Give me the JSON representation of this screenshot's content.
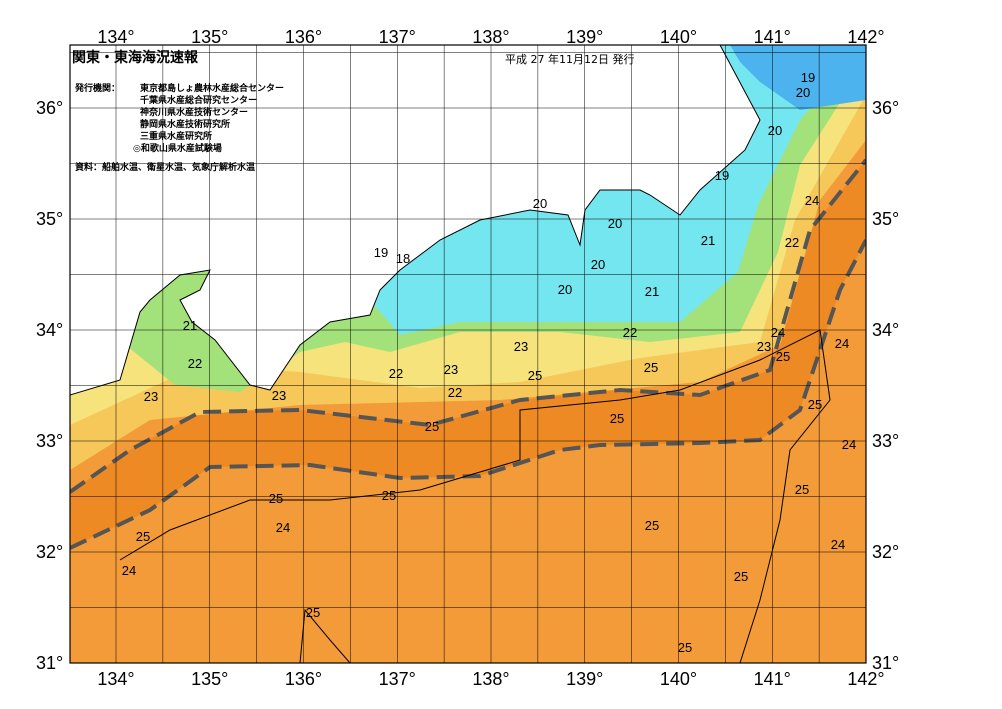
{
  "header": {
    "title": "関東・東海海況速報",
    "date": "平成 27 年11月12日 発行"
  },
  "agencies": {
    "label": "発行機関：",
    "items": [
      "東京都島しょ農林水産総合センター",
      "千葉県水産総合研究センター",
      "神奈川県水産技術センター",
      "静岡県水産技術研究所",
      "三重県水産研究所",
      "◎和歌山県水産試験場"
    ]
  },
  "source": "資料：船舶水温、衛星水温、気象庁解析水温",
  "map": {
    "lon_labels": [
      "134°",
      "135°",
      "136°",
      "137°",
      "138°",
      "139°",
      "140°",
      "141°",
      "142°"
    ],
    "lat_labels": [
      "31°",
      "32°",
      "33°",
      "34°",
      "35°",
      "36°"
    ],
    "contour_labels": [
      "19",
      "20",
      "20",
      "19",
      "20",
      "20",
      "19",
      "18",
      "20",
      "20",
      "21",
      "21",
      "24",
      "22",
      "21",
      "22",
      "24",
      "23",
      "25",
      "24",
      "22",
      "23",
      "25",
      "22",
      "23",
      "25",
      "23",
      "23",
      "22",
      "25",
      "25",
      "25",
      "24",
      "25",
      "25",
      "25",
      "24",
      "25",
      "25",
      "24",
      "24",
      "25",
      "25",
      "25"
    ]
  }
}
